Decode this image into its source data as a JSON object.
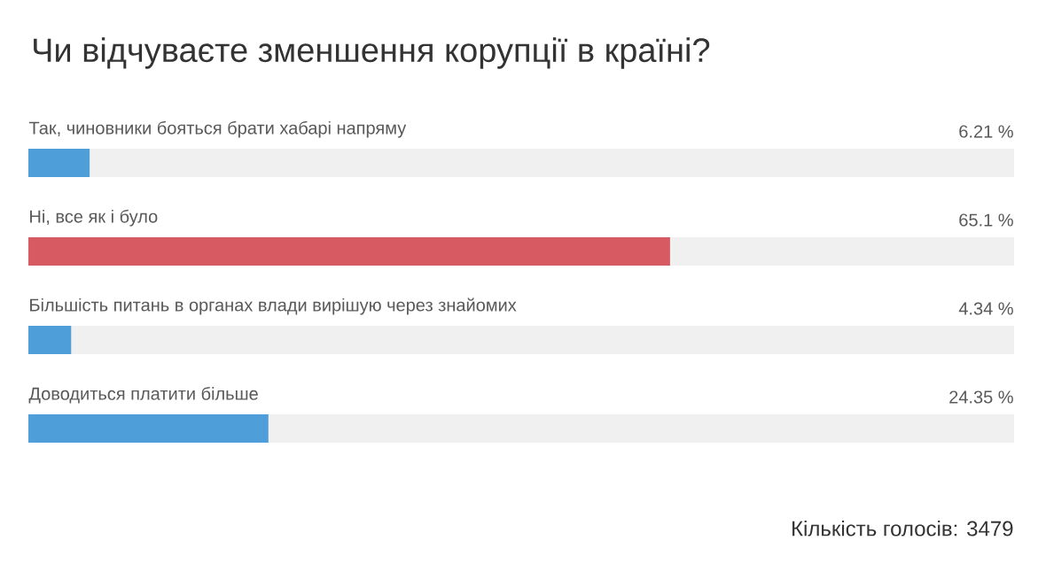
{
  "chart_data": {
    "type": "bar",
    "orientation": "horizontal",
    "title": "Чи відчуваєте зменшення корупції в країні?",
    "categories": [
      "Так, чиновники бояться брати хабарі напряму",
      "Ні, все як і було",
      "Більшість питань в органах влади вирішую через знайомих",
      "Доводиться платити більше"
    ],
    "values": [
      6.21,
      65.1,
      4.34,
      24.35
    ],
    "value_labels": [
      "6.21 %",
      "65.1 %",
      "4.34 %",
      "24.35 %"
    ],
    "colors": [
      "#4e9ed9",
      "#d75a62",
      "#4e9ed9",
      "#4e9ed9"
    ],
    "xlim": [
      0,
      100
    ],
    "annotations": [
      "Кількість голосів: 3479"
    ]
  }
}
